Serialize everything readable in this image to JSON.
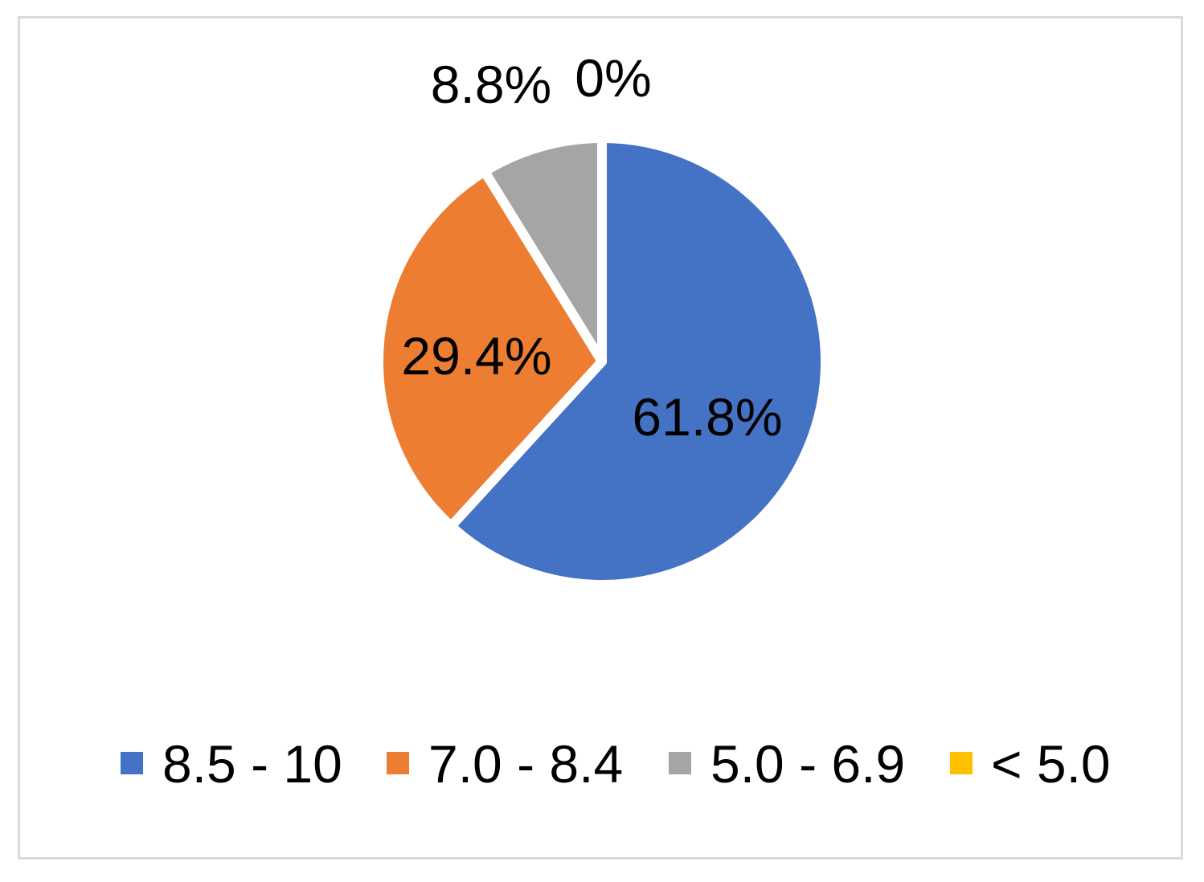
{
  "chart_data": {
    "type": "pie",
    "title": "",
    "categories": [
      "8.5 - 10",
      "7.0 - 8.4",
      "5.0 - 6.9",
      "< 5.0"
    ],
    "values": [
      61.8,
      29.4,
      8.8,
      0
    ],
    "labels": [
      "61.8%",
      "29.4%",
      "8.8%",
      "0%"
    ],
    "colors": [
      "#4472C4",
      "#ED7D31",
      "#A5A5A5",
      "#FFC000"
    ],
    "legend": "bottom",
    "start_angle_deg": 0,
    "direction": "clockwise"
  }
}
